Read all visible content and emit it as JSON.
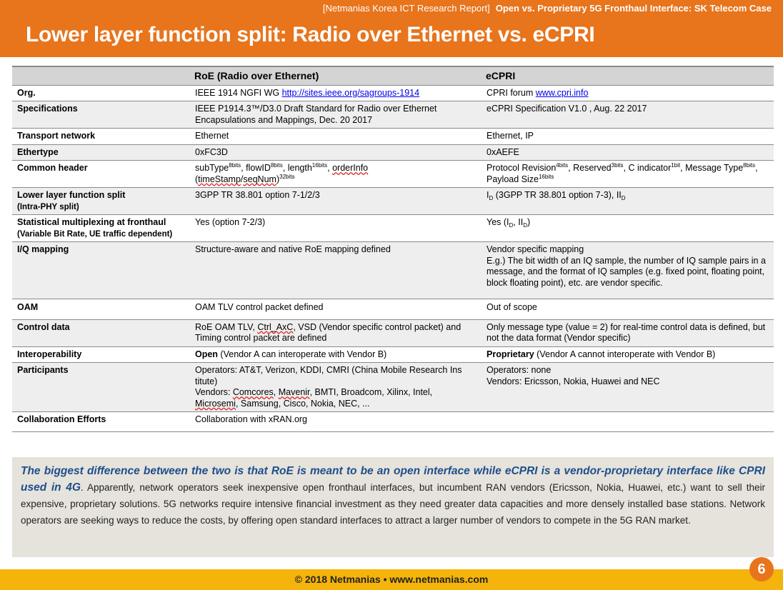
{
  "header": {
    "report_label": "[Netmanias Korea ICT Research Report]",
    "report_title": "Open vs. Proprietary 5G Fronthaul Interface: SK Telecom Case",
    "title": "Lower layer function split: Radio over Ethernet vs. eCPRI"
  },
  "table": {
    "columns": [
      "",
      "RoE (Radio over Ethernet)",
      "eCPRI"
    ],
    "rows": {
      "org": {
        "label": "Org.",
        "roe_text": "IEEE 1914  NGFI WG ",
        "roe_link": "http://sites.ieee.org/sagroups-1914",
        "ecpri_text": "CPRI forum ",
        "ecpri_link": "www.cpri.info"
      },
      "specifications": {
        "label": "Specifications",
        "roe": "IEEE P1914.3™/D3.0  Draft Standard for Radio over Ethernet Encapsulations and Mappings, Dec. 20 2017",
        "ecpri": "eCPRI Specification V1.0 , Aug. 22 2017"
      },
      "transport": {
        "label": "Transport network",
        "roe": "Ethernet",
        "ecpri": "Ethernet, IP"
      },
      "ethertype": {
        "label": "Ethertype",
        "roe": "0xFC3D",
        "ecpri": "0xAEFE"
      },
      "common_header": {
        "label": "Common header",
        "roe_subtype": "subType",
        "roe_subtype_bits": "8bits",
        "roe_flowid": "flowID",
        "roe_flowid_bits": "8bits",
        "roe_length": "length",
        "roe_length_bits": "16bits",
        "roe_orderinfo": "orderInfo",
        "roe_timestamp": "timeStamp",
        "roe_seqnum": "seqNum",
        "roe_tail_bits": "32bits",
        "ecpri_protocol": "Protocol Revision",
        "ecpri_protocol_bits": "4bits",
        "ecpri_reserved": "Reserved",
        "ecpri_reserved_bits": "3bits",
        "ecpri_cind": "C indicator",
        "ecpri_cind_bits": "1bit",
        "ecpri_msgtype": "Message Type",
        "ecpri_msgtype_bits": "8bits",
        "ecpri_payload": "Payload Size",
        "ecpri_payload_bits": "16bits"
      },
      "split": {
        "label": "Lower layer function split",
        "sublabel": "(Intra-PHY split)",
        "roe": "3GPP TR 38.801  option 7-1/2/3",
        "ecpri_i": "I",
        "ecpri_mid": " (3GPP TR 38.801  option 7-3), II",
        "ecpri_sub": "D"
      },
      "stat_mux": {
        "label": "Statistical multiplexing at fronthaul",
        "sublabel": "(Variable Bit Rate, UE traffic dependent)",
        "roe": "Yes (option 7-2/3)",
        "ecpri_pre": "Yes (I",
        "ecpri_sub": "D",
        "ecpri_mid": ", II",
        "ecpri_post": ")"
      },
      "iq_mapping": {
        "label": "I/Q mapping",
        "roe": "Structure-aware and native RoE mapping defined",
        "ecpri_line1": "Vendor specific mapping",
        "ecpri_line2": "E.g.) The bit width of an IQ sample, the number of IQ sample pairs in a message, and the format of IQ samples (e.g. fixed point, floating point, block floating point), etc. are vendor specific."
      },
      "oam": {
        "label": "OAM",
        "roe": "OAM TLV control packet defined",
        "ecpri": "Out of scope"
      },
      "control": {
        "label": "Control data",
        "roe_pre": "RoE OAM TLV, ",
        "roe_ctrl": "Ctrl_AxC",
        "roe_post": ", VSD (Vendor specific control packet) and Timing control packet are defined",
        "ecpri": "Only message type (value = 2) for real-time control data is defined, but not the data format (Vendor specific)"
      },
      "interop": {
        "label": "Interoperability",
        "roe_bold": "Open",
        "roe_rest": " (Vendor A can interoperate with Vendor B)",
        "ecpri_bold": "Proprietary",
        "ecpri_rest": " (Vendor A cannot interoperate with Vendor B)"
      },
      "participants": {
        "label": "Participants",
        "roe_line1": "Operators: AT&T, Verizon, KDDI, CMRI (China Mobile Research Ins titute)",
        "roe_pre": "Vendors: ",
        "roe_comcores": "Comcores",
        "roe_sep1": ", ",
        "roe_mavenir": "Mavenir",
        "roe_mid": ", BMTI, Broadcom, Xilinx, Intel, ",
        "roe_microsemi": "Microsemi",
        "roe_end": ", Samsung, Cisco, Nokia, NEC, ...",
        "ecpri_line1": "Operators: none",
        "ecpri_line2": "Vendors: Ericsson, Nokia, Huawei and NEC"
      },
      "collab": {
        "label": "Collaboration Efforts",
        "roe": "Collaboration with xRAN.org",
        "ecpri": ""
      }
    }
  },
  "summary": {
    "lead": "The biggest difference between the two is that RoE is meant to be an open interface while eCPRI is a vendor-proprietary interface like CPRI used in 4G",
    "body": ". Apparently, network operators seek inexpensive open fronthaul interfaces, but incumbent RAN vendors (Ericsson, Nokia, Huawei, etc.) want to sell their expensive, proprietary solutions. 5G networks require intensive financial investment as they need greater data capacities and more densely installed base stations. Network operators are seeking ways to reduce the costs, by offering open standard interfaces to attract a larger number of vendors to compete in the 5G RAN market."
  },
  "footer": {
    "text": "© 2018 Netmanias • www.netmanias.com",
    "page": "6"
  },
  "colors": {
    "header_orange": "#e8741c",
    "footer_yellow": "#f5b40b",
    "summary_blue": "#1f4e8c"
  }
}
